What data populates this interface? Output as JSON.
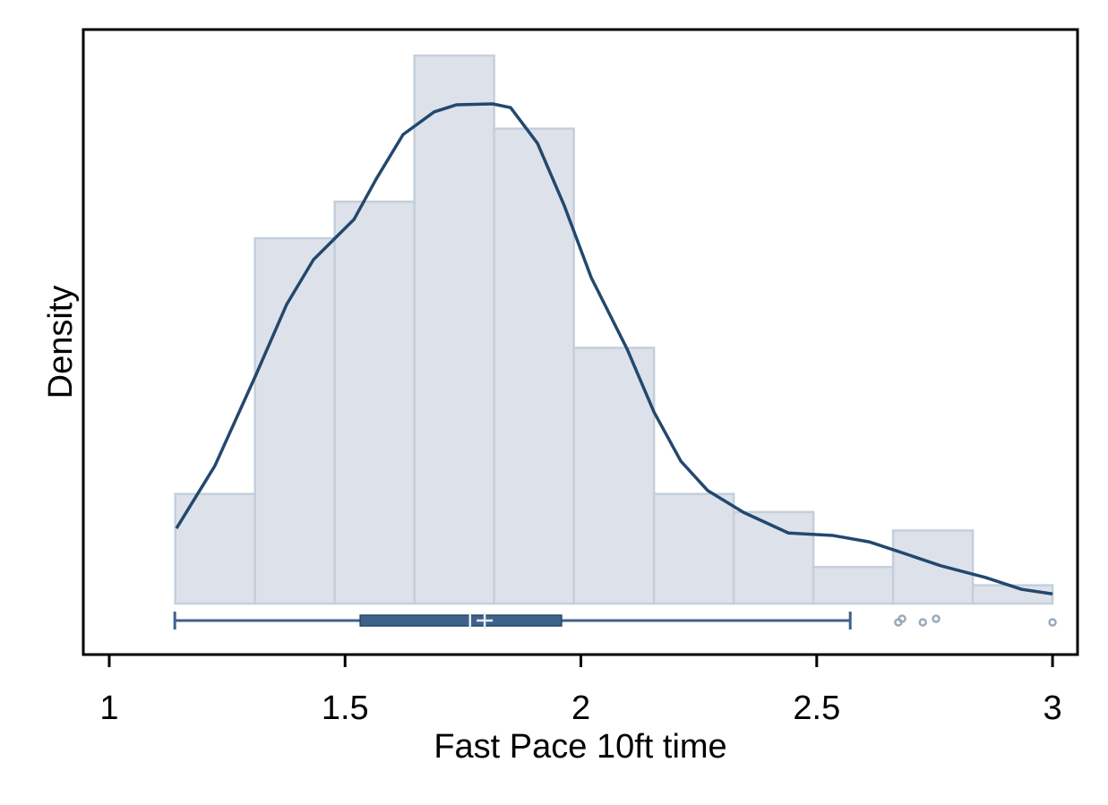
{
  "chart_data": {
    "type": "histogram",
    "x_label": "Fast Pace 10ft time",
    "y_label": "Density",
    "bins": [
      1.14,
      1.309,
      1.478,
      1.647,
      1.816,
      1.985,
      2.155,
      2.324,
      2.493,
      2.662,
      2.831,
      3.0
    ],
    "values": [
      0.261,
      0.87,
      0.957,
      1.305,
      1.131,
      0.609,
      0.261,
      0.218,
      0.087,
      0.174,
      0.0435
    ],
    "color": "#dde2ea",
    "edge_color": "#c4cfdb",
    "density": {
      "color": "#23486e",
      "x": [
        1.1425,
        1.224,
        1.31,
        1.376,
        1.433,
        1.519,
        1.566,
        1.623,
        1.689,
        1.737,
        1.813,
        1.851,
        1.908,
        1.965,
        2.022,
        2.098,
        2.155,
        2.212,
        2.269,
        2.345,
        2.44,
        2.535,
        2.611,
        2.668,
        2.763,
        2.858,
        2.934,
        3.0
      ],
      "y": [
        0.179,
        0.328,
        0.542,
        0.712,
        0.819,
        0.915,
        1.011,
        1.117,
        1.171,
        1.188,
        1.19,
        1.181,
        1.096,
        0.947,
        0.776,
        0.606,
        0.456,
        0.339,
        0.269,
        0.217,
        0.168,
        0.162,
        0.147,
        0.126,
        0.09,
        0.062,
        0.034,
        0.023
      ]
    },
    "box": {
      "color": "#3e6289",
      "outlier_color": "#9aaabb",
      "whisker_low": 1.139,
      "q1": 1.532,
      "median": 1.765,
      "mean": 1.796,
      "q3": 1.959,
      "whisker_high": 2.571,
      "outliers": [
        2.673,
        2.681,
        2.725,
        2.753,
        3.0
      ]
    },
    "xlim": [
      0.945,
      3.053
    ],
    "ylim": [
      -0.1215,
      1.367
    ],
    "xticks": [
      1,
      1.5,
      2,
      2.5,
      3
    ]
  }
}
